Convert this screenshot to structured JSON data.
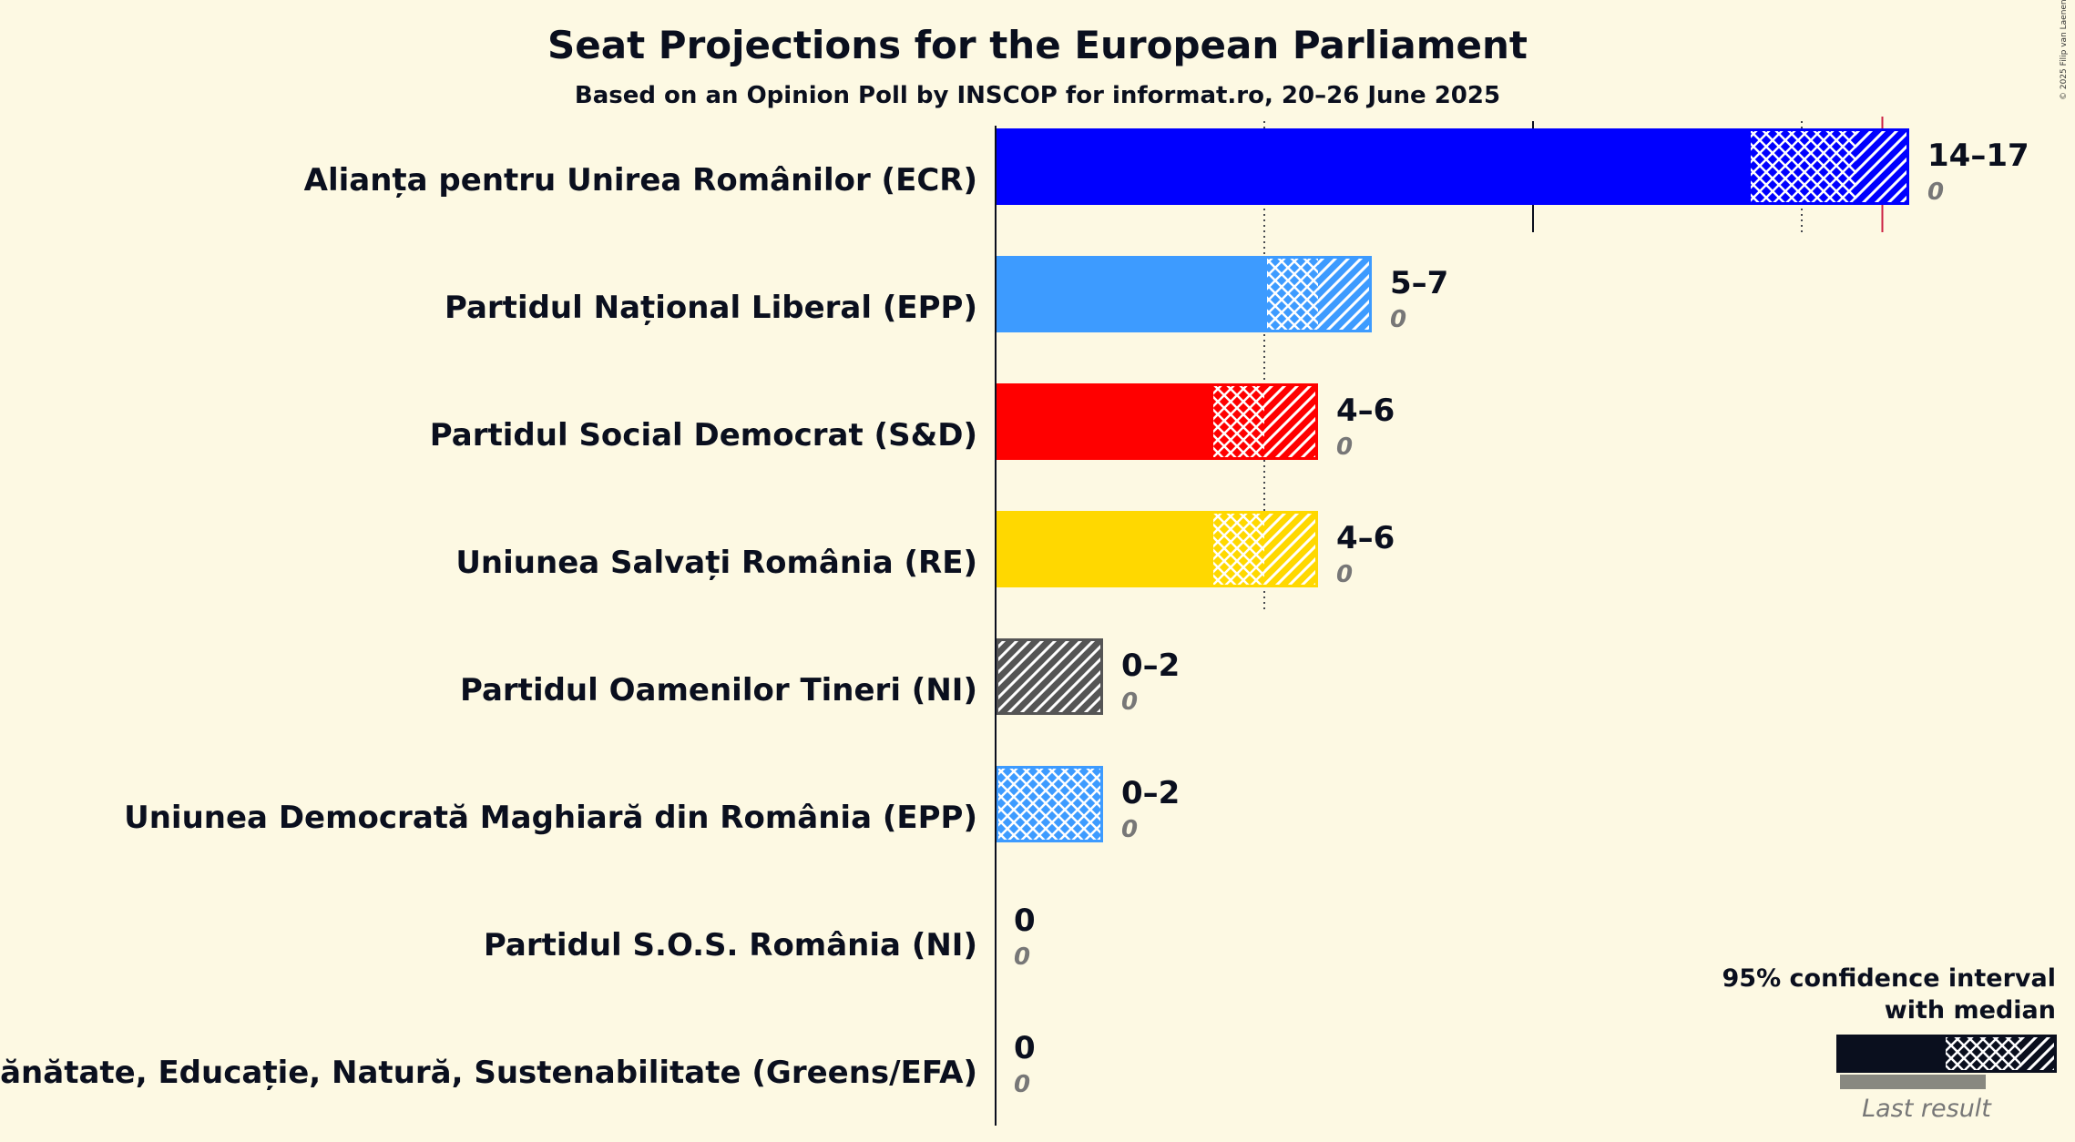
{
  "chart_data": {
    "type": "bar",
    "title": "Seat Projections for the European Parliament",
    "subtitle": "Based on an Opinion Poll by INSCOP for informat.ro, 20–26 June 2025",
    "copyright": "© 2025 Filip van Laenen",
    "majority_marker": 16.5,
    "gridlines": {
      "solid": [
        0,
        10
      ],
      "dotted": [
        5,
        15
      ]
    },
    "parties": [
      {
        "name": "Alianța pentru Unirea Românilor (ECR)",
        "ci_low": 14,
        "median": 16,
        "ci_high": 17,
        "solid_end": 14,
        "range_label": "14–17",
        "last_result": 0,
        "last_label": "0",
        "color": "#0000ff",
        "zero_bar": false
      },
      {
        "name": "Partidul Național Liberal (EPP)",
        "ci_low": 5,
        "median": 6,
        "ci_high": 7,
        "solid_end": 5,
        "range_label": "5–7",
        "last_result": 0,
        "last_label": "0",
        "color": "#3d9bff",
        "zero_bar": false
      },
      {
        "name": "Partidul Social Democrat (S&D)",
        "ci_low": 4,
        "median": 5,
        "ci_high": 6,
        "solid_end": 4,
        "range_label": "4–6",
        "last_result": 0,
        "last_label": "0",
        "color": "#ff0000",
        "zero_bar": false
      },
      {
        "name": "Uniunea Salvați România (RE)",
        "ci_low": 4,
        "median": 5,
        "ci_high": 6,
        "solid_end": 4,
        "range_label": "4–6",
        "last_result": 0,
        "last_label": "0",
        "color": "#ffd800",
        "zero_bar": false
      },
      {
        "name": "Partidul Oamenilor Tineri (NI)",
        "ci_low": 0,
        "median": 0,
        "ci_high": 2,
        "solid_end": 0,
        "range_label": "0–2",
        "last_result": 0,
        "last_label": "0",
        "color": "#555555",
        "zero_bar": false
      },
      {
        "name": "Uniunea Democrată Maghiară din România (EPP)",
        "ci_low": 0,
        "median": 2,
        "ci_high": 2,
        "solid_end": 0,
        "range_label": "0–2",
        "last_result": 0,
        "last_label": "0",
        "color": "#3d9bff",
        "zero_bar": false
      },
      {
        "name": "Partidul S.O.S. România (NI)",
        "ci_low": 0,
        "median": 0,
        "ci_high": 0,
        "solid_end": 0,
        "range_label": "0",
        "last_result": 0,
        "last_label": "0",
        "color": "#0a0f1e",
        "zero_bar": true
      },
      {
        "name": "Sănătate, Educație, Natură, Sustenabilitate (Greens/EFA)",
        "ci_low": 0,
        "median": 0,
        "ci_high": 0,
        "solid_end": 0,
        "range_label": "0",
        "last_result": 0,
        "last_label": "0",
        "color": "#0a0f1e",
        "zero_bar": true
      }
    ],
    "legend": {
      "line1": "95% confidence interval",
      "line2": "with median",
      "last_result_label": "Last result",
      "color": "#0a0f1e"
    }
  }
}
